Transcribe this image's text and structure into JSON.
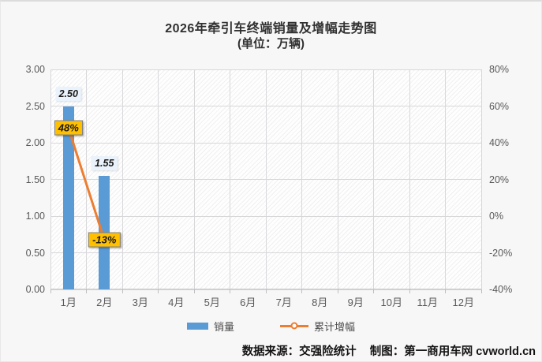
{
  "title": {
    "line1": "2026年牵引车终端销量及增幅走势图",
    "line2": "(单位：万辆)"
  },
  "chart_data": {
    "type": "bar",
    "subtype": "bar-line combo, dual axis",
    "categories": [
      "1月",
      "2月",
      "3月",
      "4月",
      "5月",
      "6月",
      "7月",
      "8月",
      "9月",
      "10月",
      "11月",
      "12月"
    ],
    "series": [
      {
        "name": "销量",
        "type": "bar",
        "axis": "left",
        "color": "#5B9BD5",
        "values": [
          2.5,
          1.55,
          null,
          null,
          null,
          null,
          null,
          null,
          null,
          null,
          null,
          null
        ],
        "data_labels": [
          "2.50",
          "1.55",
          null,
          null,
          null,
          null,
          null,
          null,
          null,
          null,
          null,
          null
        ]
      },
      {
        "name": "累计增幅",
        "type": "line",
        "axis": "right",
        "color": "#ED7D31",
        "values": [
          48,
          -13,
          null,
          null,
          null,
          null,
          null,
          null,
          null,
          null,
          null,
          null
        ],
        "data_labels": [
          "48%",
          "-13%",
          null,
          null,
          null,
          null,
          null,
          null,
          null,
          null,
          null,
          null
        ]
      }
    ],
    "left_axis": {
      "min": 0,
      "max": 3,
      "step": 0.5,
      "ticks": [
        "3.00",
        "2.50",
        "2.00",
        "1.50",
        "1.00",
        "0.50",
        "0.00"
      ]
    },
    "right_axis": {
      "min": -40,
      "max": 80,
      "step": 20,
      "ticks": [
        "80%",
        "60%",
        "40%",
        "20%",
        "0%",
        "-20%",
        "-40%"
      ]
    },
    "legend_position": "bottom",
    "grid": true,
    "colors": {
      "bar": "#5B9BD5",
      "line": "#ED7D31",
      "sales_label_bg": "#EAF2FB",
      "growth_label_bg": "#FFC000",
      "growth_label_border": "#808080",
      "gridline": "#D8D8DB",
      "axis_text": "#595959"
    }
  },
  "footer": {
    "source": "数据来源：交强险统计",
    "credit": "制图：第一商用车网 cvworld.cn"
  }
}
